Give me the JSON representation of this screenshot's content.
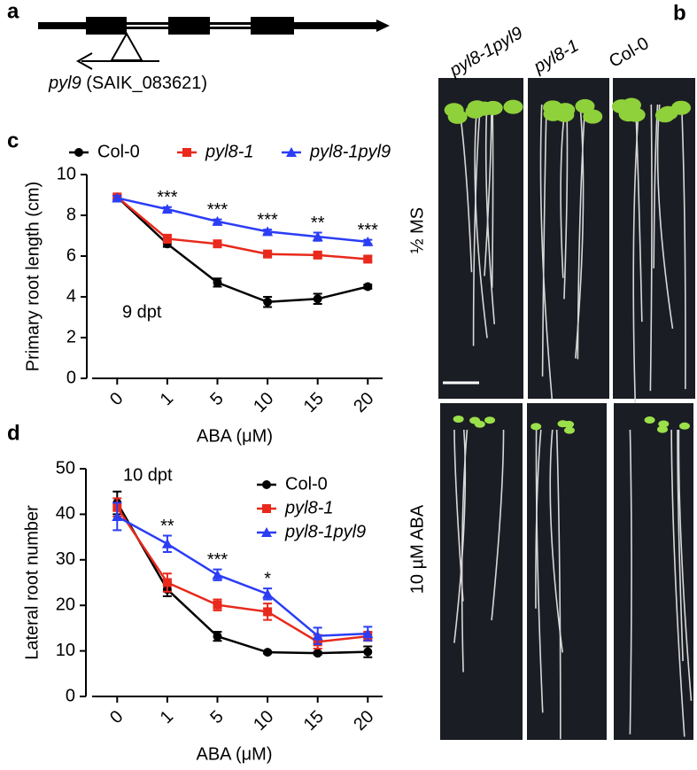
{
  "panel_labels": [
    "a",
    "b",
    "c",
    "d"
  ],
  "gene_diagram": {
    "gene": "pyl9",
    "allele": "(SAIK_083621)"
  },
  "photos": {
    "columns": [
      "pyl8-1pyl9",
      "pyl8-1",
      "Col-0"
    ],
    "rows": [
      "½ MS",
      "10 µM ABA"
    ]
  },
  "chart_data": [
    {
      "type": "line",
      "annotation": "9 dpt",
      "x_label": "ABA (μM)",
      "y_label": "Primary root length (cm)",
      "categories": [
        "0",
        "1",
        "5",
        "10",
        "15",
        "20"
      ],
      "ylim": [
        0,
        10
      ],
      "yticks": [
        0,
        2,
        4,
        6,
        8,
        10
      ],
      "legend": "top",
      "significance": [
        null,
        "***",
        "***",
        "***",
        "**",
        "***"
      ],
      "series": [
        {
          "name": "Col-0",
          "color": "#000000",
          "marker": "circle",
          "italic": false,
          "values": [
            8.9,
            6.6,
            4.7,
            3.75,
            3.9,
            4.5
          ],
          "errors": [
            0.1,
            0.15,
            0.2,
            0.25,
            0.25,
            0.1
          ]
        },
        {
          "name": "pyl8-1",
          "color": "#e8291c",
          "marker": "square",
          "italic": true,
          "values": [
            8.9,
            6.85,
            6.6,
            6.1,
            6.05,
            5.85
          ],
          "errors": [
            0.1,
            0.2,
            0.1,
            0.1,
            0.1,
            0.15
          ]
        },
        {
          "name": "pyl8-1pyl9",
          "color": "#2b3df5",
          "marker": "triangle",
          "italic": true,
          "values": [
            8.85,
            8.3,
            7.7,
            7.2,
            6.95,
            6.7
          ],
          "errors": [
            0.1,
            0.1,
            0.1,
            0.1,
            0.2,
            0.1
          ]
        }
      ]
    },
    {
      "type": "line",
      "annotation": "10 dpt",
      "x_label": "ABA (μM)",
      "y_label": "Lateral root number",
      "categories": [
        "0",
        "1",
        "5",
        "10",
        "15",
        "20"
      ],
      "ylim": [
        0,
        50
      ],
      "yticks": [
        0,
        10,
        20,
        30,
        40,
        50
      ],
      "legend": "upper right",
      "significance": [
        null,
        "**",
        "***",
        "*",
        null,
        null
      ],
      "series": [
        {
          "name": "Col-0",
          "color": "#000000",
          "marker": "circle",
          "italic": false,
          "values": [
            42.5,
            23.5,
            13.2,
            9.7,
            9.5,
            9.8
          ],
          "errors": [
            2.5,
            1.5,
            1,
            0.3,
            0.3,
            1.2
          ]
        },
        {
          "name": "pyl8-1",
          "color": "#e8291c",
          "marker": "square",
          "italic": true,
          "values": [
            41.5,
            25,
            20.1,
            18.6,
            12,
            13.2
          ],
          "errors": [
            2,
            2,
            1.2,
            1.8,
            1.5,
            1
          ]
        },
        {
          "name": "pyl8-1pyl9",
          "color": "#2b3df5",
          "marker": "triangle",
          "italic": true,
          "values": [
            39.5,
            33.5,
            26.7,
            22.5,
            13.3,
            13.8
          ],
          "errors": [
            3,
            1.8,
            1.2,
            1.2,
            1.8,
            1.5
          ]
        }
      ]
    }
  ]
}
